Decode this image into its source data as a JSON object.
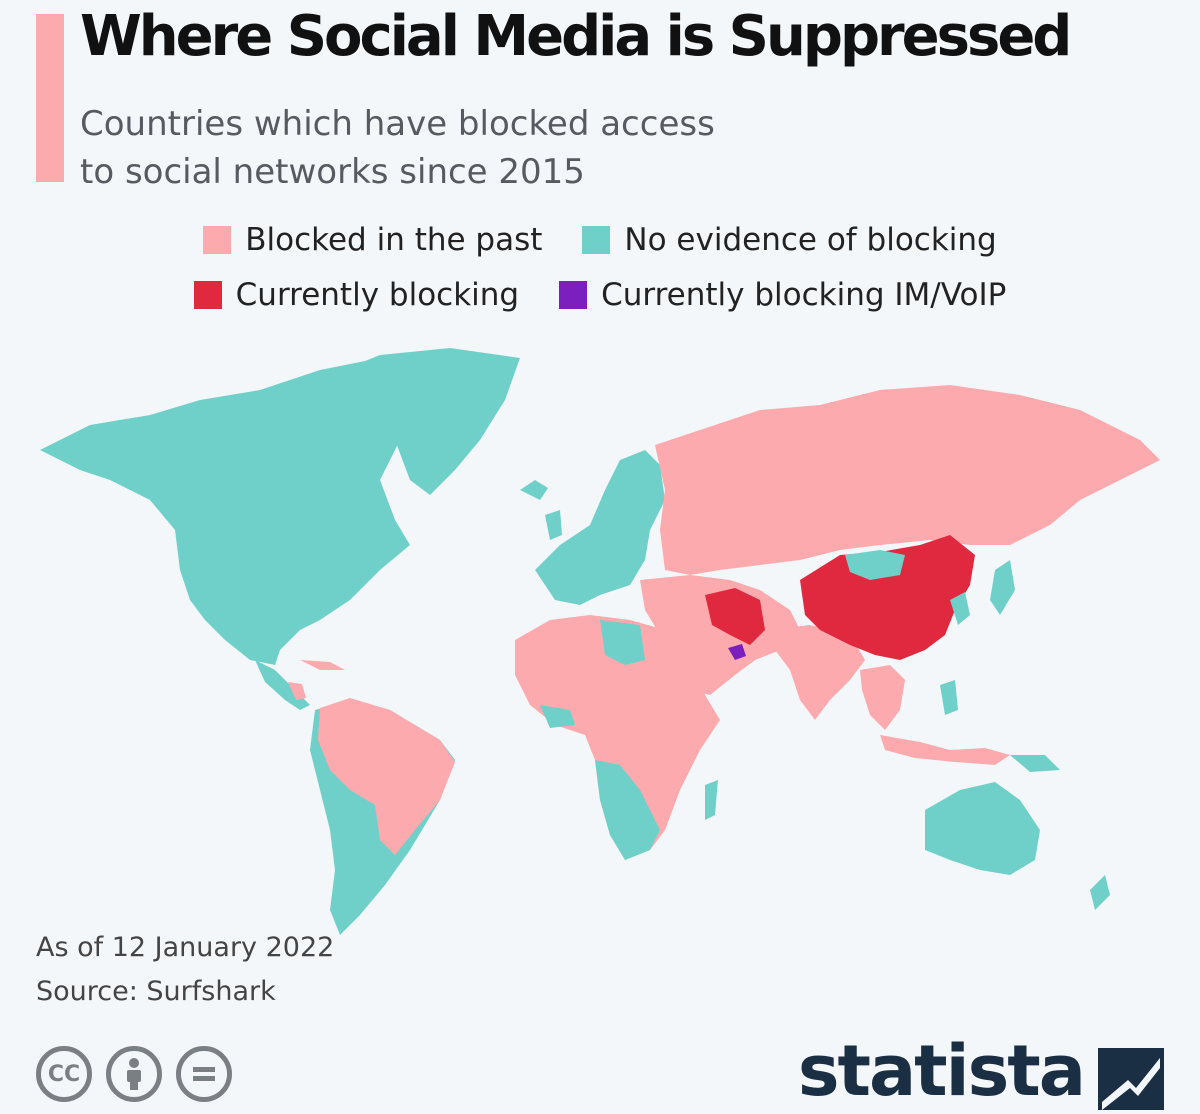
{
  "header": {
    "title": "Where Social Media is Suppressed",
    "subtitle_line1": "Countries which have blocked access",
    "subtitle_line2": "to social networks since 2015"
  },
  "legend": {
    "blocked_past": "Blocked in the past",
    "no_evidence": "No evidence of blocking",
    "currently_blocking": "Currently blocking",
    "currently_blocking_im": "Currently blocking IM/VoIP"
  },
  "colors": {
    "blocked_past": "#fcaaad",
    "no_evidence": "#6fd0ca",
    "currently_blocking": "#e0293f",
    "currently_blocking_im": "#7b1fbf",
    "background": "#f4f7fa",
    "brand": "#1a2e44"
  },
  "footer": {
    "as_of": "As of 12 January 2022",
    "source": "Source: Surfshark",
    "brand": "statista"
  },
  "icons": {
    "cc": "CC",
    "by": "attribution-person-icon",
    "nd": "no-derivatives-equals-icon",
    "brand_mark": "statista-logo-mark"
  }
}
